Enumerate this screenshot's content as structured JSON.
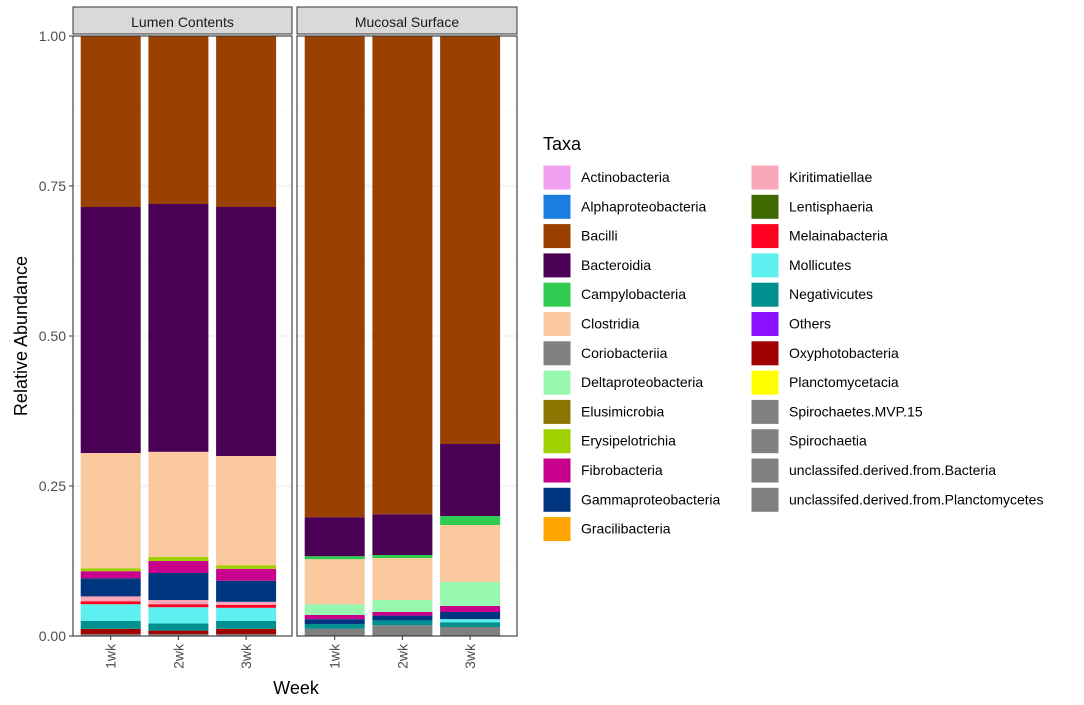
{
  "chart_data": {
    "type": "bar",
    "stacked": true,
    "ylabel": "Relative Abundance",
    "xlabel": "Week",
    "ylim": [
      0,
      1
    ],
    "yticks": [
      "0.00",
      "0.25",
      "0.50",
      "0.75",
      "1.00"
    ],
    "ytick_values": [
      0,
      0.25,
      0.5,
      0.75,
      1.0
    ],
    "grid": true,
    "legend_title": "Taxa",
    "legend_position": "right",
    "categories": [
      "1wk",
      "2wk",
      "3wk"
    ],
    "taxa": [
      {
        "name": "Actinobacteria",
        "color": "#f0a0f0"
      },
      {
        "name": "Alphaproteobacteria",
        "color": "#1a7ee0"
      },
      {
        "name": "Bacilli",
        "color": "#9a4000"
      },
      {
        "name": "Bacteroidia",
        "color": "#4a0055"
      },
      {
        "name": "Campylobacteria",
        "color": "#2ecc50"
      },
      {
        "name": "Clostridia",
        "color": "#fbc99e"
      },
      {
        "name": "Coriobacteriia",
        "color": "#808080"
      },
      {
        "name": "Deltaproteobacteria",
        "color": "#98f8b0"
      },
      {
        "name": "Elusimicrobia",
        "color": "#8c7400"
      },
      {
        "name": "Erysipelotrichia",
        "color": "#a0d000"
      },
      {
        "name": "Fibrobacteria",
        "color": "#c8008c"
      },
      {
        "name": "Gammaproteobacteria",
        "color": "#003580"
      },
      {
        "name": "Gracilibacteria",
        "color": "#ffa500"
      },
      {
        "name": "Kiritimatiellae",
        "color": "#f8a8b8"
      },
      {
        "name": "Lentisphaeria",
        "color": "#3d6b00"
      },
      {
        "name": "Melainabacteria",
        "color": "#ff0020"
      },
      {
        "name": "Mollicutes",
        "color": "#5ef0f0"
      },
      {
        "name": "Negativicutes",
        "color": "#009090"
      },
      {
        "name": "Others",
        "color": "#8a10ff"
      },
      {
        "name": "Oxyphotobacteria",
        "color": "#a00000"
      },
      {
        "name": "Planctomycetacia",
        "color": "#ffff00"
      },
      {
        "name": "Spirochaetes.MVP.15",
        "color": "#808080"
      },
      {
        "name": "Spirochaetia",
        "color": "#808080"
      },
      {
        "name": "unclassifed.derived.from.Bacteria",
        "color": "#808080"
      },
      {
        "name": "unclassifed.derived.from.Planctomycetes",
        "color": "#808080"
      }
    ],
    "panels": [
      {
        "title": "Lumen Contents",
        "bars": [
          {
            "category": "1wk",
            "segments": [
              {
                "taxon": "unclassifed.derived.from.Bacteria",
                "value": 0.003
              },
              {
                "taxon": "Oxyphotobacteria",
                "value": 0.009
              },
              {
                "taxon": "Negativicutes",
                "value": 0.013
              },
              {
                "taxon": "Mollicutes",
                "value": 0.028
              },
              {
                "taxon": "Melainabacteria",
                "value": 0.005
              },
              {
                "taxon": "Kiritimatiellae",
                "value": 0.008
              },
              {
                "taxon": "Gammaproteobacteria",
                "value": 0.03
              },
              {
                "taxon": "Fibrobacteria",
                "value": 0.012
              },
              {
                "taxon": "Erysipelotrichia",
                "value": 0.005
              },
              {
                "taxon": "Clostridia",
                "value": 0.192
              },
              {
                "taxon": "Bacteroidia",
                "value": 0.41
              },
              {
                "taxon": "Bacilli",
                "value": 0.285
              }
            ]
          },
          {
            "category": "2wk",
            "segments": [
              {
                "taxon": "unclassifed.derived.from.Bacteria",
                "value": 0.003
              },
              {
                "taxon": "Oxyphotobacteria",
                "value": 0.006
              },
              {
                "taxon": "Negativicutes",
                "value": 0.012
              },
              {
                "taxon": "Mollicutes",
                "value": 0.027
              },
              {
                "taxon": "Melainabacteria",
                "value": 0.005
              },
              {
                "taxon": "Kiritimatiellae",
                "value": 0.007
              },
              {
                "taxon": "Gammaproteobacteria",
                "value": 0.045
              },
              {
                "taxon": "Fibrobacteria",
                "value": 0.02
              },
              {
                "taxon": "Erysipelotrichia",
                "value": 0.007
              },
              {
                "taxon": "Clostridia",
                "value": 0.175
              },
              {
                "taxon": "Bacteroidia",
                "value": 0.413
              },
              {
                "taxon": "Bacilli",
                "value": 0.28
              }
            ]
          },
          {
            "category": "3wk",
            "segments": [
              {
                "taxon": "unclassifed.derived.from.Bacteria",
                "value": 0.003
              },
              {
                "taxon": "Oxyphotobacteria",
                "value": 0.009
              },
              {
                "taxon": "Negativicutes",
                "value": 0.013
              },
              {
                "taxon": "Mollicutes",
                "value": 0.022
              },
              {
                "taxon": "Melainabacteria",
                "value": 0.005
              },
              {
                "taxon": "Kiritimatiellae",
                "value": 0.005
              },
              {
                "taxon": "Gammaproteobacteria",
                "value": 0.035
              },
              {
                "taxon": "Fibrobacteria",
                "value": 0.02
              },
              {
                "taxon": "Erysipelotrichia",
                "value": 0.006
              },
              {
                "taxon": "Clostridia",
                "value": 0.182
              },
              {
                "taxon": "Bacteroidia",
                "value": 0.415
              },
              {
                "taxon": "Bacilli",
                "value": 0.285
              }
            ]
          }
        ]
      },
      {
        "title": "Mucosal Surface",
        "bars": [
          {
            "category": "1wk",
            "segments": [
              {
                "taxon": "unclassifed.derived.from.Bacteria",
                "value": 0.012
              },
              {
                "taxon": "Negativicutes",
                "value": 0.008
              },
              {
                "taxon": "Gammaproteobacteria",
                "value": 0.008
              },
              {
                "taxon": "Fibrobacteria",
                "value": 0.007
              },
              {
                "taxon": "Deltaproteobacteria",
                "value": 0.018
              },
              {
                "taxon": "Clostridia",
                "value": 0.075
              },
              {
                "taxon": "Campylobacteria",
                "value": 0.005
              },
              {
                "taxon": "Bacteroidia",
                "value": 0.065
              },
              {
                "taxon": "Bacilli",
                "value": 0.802
              }
            ]
          },
          {
            "category": "2wk",
            "segments": [
              {
                "taxon": "unclassifed.derived.from.Bacteria",
                "value": 0.018
              },
              {
                "taxon": "Negativicutes",
                "value": 0.008
              },
              {
                "taxon": "Gammaproteobacteria",
                "value": 0.008
              },
              {
                "taxon": "Fibrobacteria",
                "value": 0.006
              },
              {
                "taxon": "Deltaproteobacteria",
                "value": 0.02
              },
              {
                "taxon": "Clostridia",
                "value": 0.07
              },
              {
                "taxon": "Campylobacteria",
                "value": 0.005
              },
              {
                "taxon": "Bacteroidia",
                "value": 0.068
              },
              {
                "taxon": "Bacilli",
                "value": 0.797
              }
            ]
          },
          {
            "category": "3wk",
            "segments": [
              {
                "taxon": "unclassifed.derived.from.Bacteria",
                "value": 0.015
              },
              {
                "taxon": "Negativicutes",
                "value": 0.008
              },
              {
                "taxon": "Mollicutes",
                "value": 0.005
              },
              {
                "taxon": "Gammaproteobacteria",
                "value": 0.012
              },
              {
                "taxon": "Fibrobacteria",
                "value": 0.01
              },
              {
                "taxon": "Deltaproteobacteria",
                "value": 0.04
              },
              {
                "taxon": "Clostridia",
                "value": 0.095
              },
              {
                "taxon": "Campylobacteria",
                "value": 0.015
              },
              {
                "taxon": "Bacteroidia",
                "value": 0.12
              },
              {
                "taxon": "Bacilli",
                "value": 0.68
              }
            ]
          }
        ]
      }
    ]
  }
}
